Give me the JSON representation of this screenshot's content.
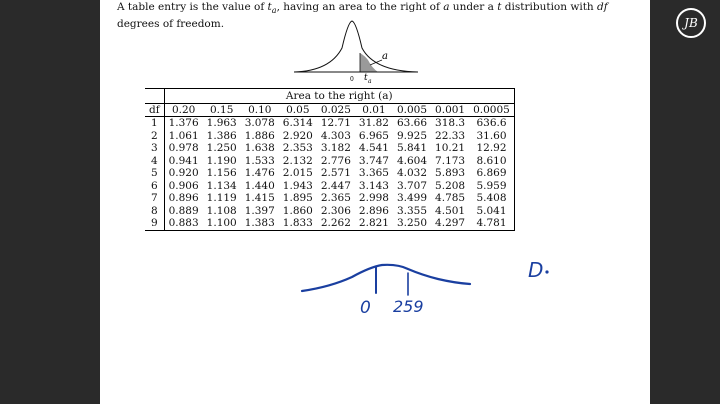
{
  "intro": {
    "line1_a": "A table entry is the value of ",
    "t_sym": "t",
    "a_sub": "a",
    "line1_b": ", having an area to the right of ",
    "a_sym": "a",
    "line1_c": " under a ",
    "t_sym2": "t",
    "line1_d": " distribution with ",
    "df_sym": "df",
    "line2": "degrees of freedom."
  },
  "curve": {
    "a_label": "a",
    "zero_label": "0",
    "ta_label": "t",
    "ta_sub": "a"
  },
  "table": {
    "area_header": "Area to the right (a)",
    "df_header": "df",
    "columns": [
      "0.20",
      "0.15",
      "0.10",
      "0.05",
      "0.025",
      "0.01",
      "0.005",
      "0.001",
      "0.0005"
    ],
    "rows": [
      {
        "df": "1",
        "values": [
          "1.376",
          "1.963",
          "3.078",
          "6.314",
          "12.71",
          "31.82",
          "63.66",
          "318.3",
          "636.6"
        ]
      },
      {
        "df": "2",
        "values": [
          "1.061",
          "1.386",
          "1.886",
          "2.920",
          "4.303",
          "6.965",
          "9.925",
          "22.33",
          "31.60"
        ]
      },
      {
        "df": "3",
        "values": [
          "0.978",
          "1.250",
          "1.638",
          "2.353",
          "3.182",
          "4.541",
          "5.841",
          "10.21",
          "12.92"
        ]
      },
      {
        "df": "4",
        "values": [
          "0.941",
          "1.190",
          "1.533",
          "2.132",
          "2.776",
          "3.747",
          "4.604",
          "7.173",
          "8.610"
        ]
      },
      {
        "df": "5",
        "values": [
          "0.920",
          "1.156",
          "1.476",
          "2.015",
          "2.571",
          "3.365",
          "4.032",
          "5.893",
          "6.869"
        ]
      },
      {
        "df": "6",
        "values": [
          "0.906",
          "1.134",
          "1.440",
          "1.943",
          "2.447",
          "3.143",
          "3.707",
          "5.208",
          "5.959"
        ]
      },
      {
        "df": "7",
        "values": [
          "0.896",
          "1.119",
          "1.415",
          "1.895",
          "2.365",
          "2.998",
          "3.499",
          "4.785",
          "5.408"
        ]
      },
      {
        "df": "8",
        "values": [
          "0.889",
          "1.108",
          "1.397",
          "1.860",
          "2.306",
          "2.896",
          "3.355",
          "4.501",
          "5.041"
        ]
      },
      {
        "df": "9",
        "values": [
          "0.883",
          "1.100",
          "1.383",
          "1.833",
          "2.262",
          "2.821",
          "3.250",
          "4.297",
          "4.781"
        ]
      }
    ]
  },
  "handwriting": {
    "zero": "0",
    "value": "259",
    "letter": "D"
  },
  "logo": {
    "text": "JB"
  },
  "colors": {
    "ink_blue": "#1a3fa0",
    "shade": "#9a9a9a"
  }
}
